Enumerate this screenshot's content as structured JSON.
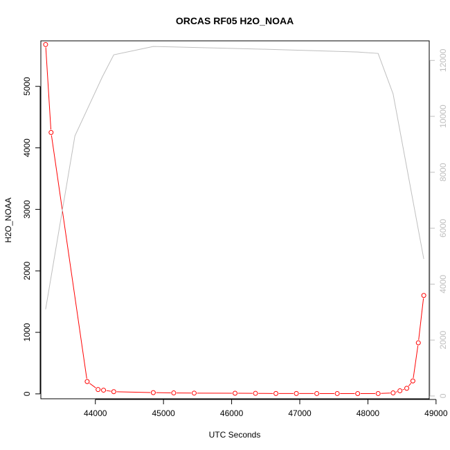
{
  "chart_data": {
    "type": "line",
    "title": "ORCAS RF05 H2O_NOAA",
    "xlabel": "UTC Seconds",
    "ylabel": "H2O_NOAA",
    "xlim": [
      43200,
      48900
    ],
    "ylim": [
      -80,
      5740
    ],
    "y2lim": [
      -100,
      12700
    ],
    "x_ticks": [
      44000,
      45000,
      46000,
      47000,
      48000,
      49000
    ],
    "y_ticks": [
      0,
      1000,
      2000,
      3000,
      4000,
      5000
    ],
    "y2_ticks": [
      0,
      2000,
      4000,
      6000,
      8000,
      10000,
      12000
    ],
    "grid": false,
    "legend": "none",
    "colors": {
      "primary": "#ff0000",
      "secondary": "#bebebe",
      "axis": "#000000"
    },
    "series": [
      {
        "axis": "left",
        "style": "line-with-open-circles",
        "color": "#ff0000",
        "x": [
          43270,
          43350,
          43880,
          44040,
          44120,
          44270,
          44850,
          45150,
          45450,
          46050,
          46350,
          46650,
          46950,
          47250,
          47550,
          47850,
          48150,
          48370,
          48470,
          48570,
          48660,
          48740,
          48820
        ],
        "values": [
          5680,
          4250,
          200,
          70,
          60,
          35,
          20,
          15,
          12,
          10,
          8,
          6,
          6,
          5,
          5,
          4,
          5,
          15,
          50,
          90,
          210,
          830,
          1600
        ]
      },
      {
        "axis": "right",
        "style": "line",
        "color": "#bebebe",
        "x": [
          43270,
          43700,
          44100,
          44270,
          44850,
          46500,
          47850,
          48150,
          48370,
          48820
        ],
        "values": [
          3100,
          9300,
          11400,
          12200,
          12500,
          12400,
          12300,
          12250,
          10800,
          4900
        ]
      }
    ]
  }
}
